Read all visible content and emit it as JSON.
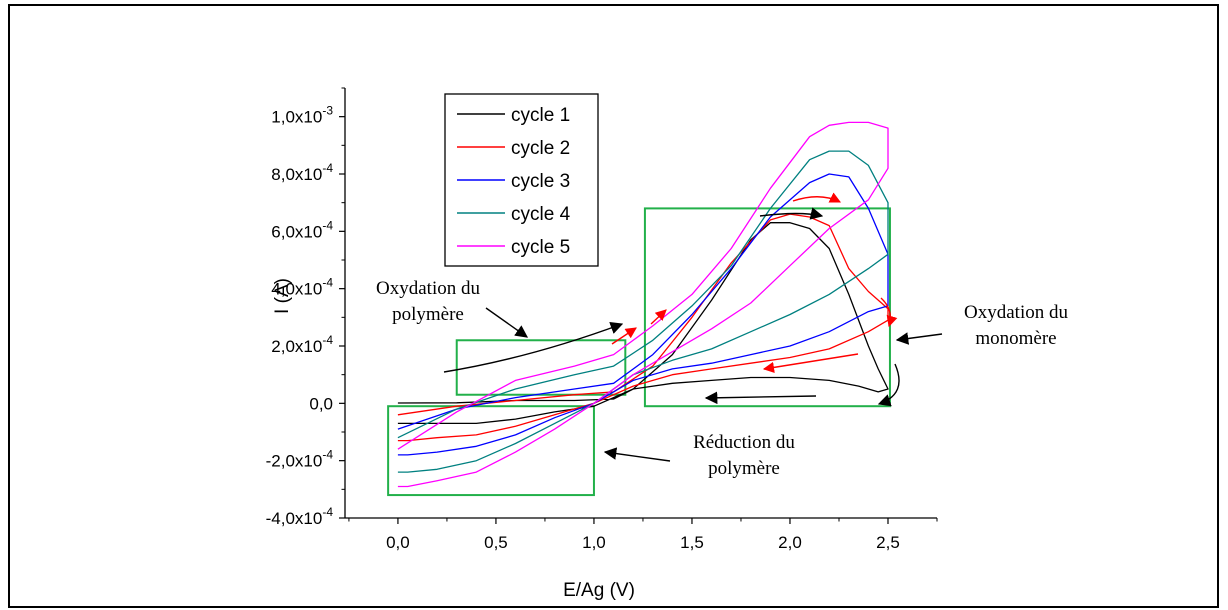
{
  "chart_data": {
    "type": "line",
    "xlabel": "E/Ag (V)",
    "ylabel": "I (A)",
    "xlim": [
      -0.27,
      2.75
    ],
    "ylim": [
      -0.0004,
      0.0011
    ],
    "x_ticks": [
      {
        "value": 0.0,
        "label": "0,0"
      },
      {
        "value": 0.5,
        "label": "0,5"
      },
      {
        "value": 1.0,
        "label": "1,0"
      },
      {
        "value": 1.5,
        "label": "1,5"
      },
      {
        "value": 2.0,
        "label": "2,0"
      },
      {
        "value": 2.5,
        "label": "2,5"
      }
    ],
    "y_ticks": [
      {
        "value": -0.0004,
        "mantissa": "-4,0x10",
        "exp": "-4"
      },
      {
        "value": -0.0002,
        "mantissa": "-2,0x10",
        "exp": "-4"
      },
      {
        "value": 0.0,
        "mantissa": "0,0",
        "exp": ""
      },
      {
        "value": 0.0002,
        "mantissa": "2,0x10",
        "exp": "-4"
      },
      {
        "value": 0.0004,
        "mantissa": "4,0x10",
        "exp": "-4"
      },
      {
        "value": 0.0006,
        "mantissa": "6,0x10",
        "exp": "-4"
      },
      {
        "value": 0.0008,
        "mantissa": "8,0x10",
        "exp": "-4"
      },
      {
        "value": 0.001,
        "mantissa": "1,0x10",
        "exp": "-3"
      }
    ],
    "legend_position": "top-left",
    "series": [
      {
        "name": "cycle 1",
        "color": "#000000",
        "forward": [
          [
            0,
            1e-06
          ],
          [
            0.3,
            2e-06
          ],
          [
            0.6,
            1e-05
          ],
          [
            0.9,
            1e-05
          ],
          [
            1.1,
            1.5e-05
          ],
          [
            1.2,
            5e-05
          ],
          [
            1.4,
            0.00017
          ],
          [
            1.6,
            0.00036
          ],
          [
            1.8,
            0.00057
          ],
          [
            1.9,
            0.00063
          ],
          [
            2.0,
            0.00063
          ],
          [
            2.1,
            0.00061
          ],
          [
            2.2,
            0.00054
          ],
          [
            2.3,
            0.00038
          ],
          [
            2.4,
            0.0002
          ],
          [
            2.45,
            0.00012
          ],
          [
            2.5,
            5e-05
          ]
        ],
        "reverse": [
          [
            2.5,
            5e-05
          ],
          [
            2.45,
            4e-05
          ],
          [
            2.35,
            6e-05
          ],
          [
            2.2,
            8e-05
          ],
          [
            2.0,
            9e-05
          ],
          [
            1.8,
            9e-05
          ],
          [
            1.6,
            8e-05
          ],
          [
            1.4,
            7e-05
          ],
          [
            1.2,
            5e-05
          ],
          [
            1.0,
            -1e-05
          ],
          [
            0.8,
            -3e-05
          ],
          [
            0.6,
            -5.5e-05
          ],
          [
            0.4,
            -7e-05
          ],
          [
            0.2,
            -7e-05
          ],
          [
            0.05,
            -7e-05
          ],
          [
            0,
            -7e-05
          ]
        ]
      },
      {
        "name": "cycle 2",
        "color": "#ff0000",
        "forward": [
          [
            0,
            -4e-05
          ],
          [
            0.3,
            -1e-05
          ],
          [
            0.6,
            1e-05
          ],
          [
            0.9,
            3e-05
          ],
          [
            1.1,
            4e-05
          ],
          [
            1.3,
            0.00013
          ],
          [
            1.5,
            0.0003
          ],
          [
            1.7,
            0.00049
          ],
          [
            1.9,
            0.00064
          ],
          [
            2.0,
            0.00066
          ],
          [
            2.1,
            0.00065
          ],
          [
            2.2,
            0.00062
          ],
          [
            2.3,
            0.00047
          ],
          [
            2.4,
            0.00039
          ],
          [
            2.5,
            0.00033
          ]
        ],
        "reverse": [
          [
            2.5,
            0.00029
          ],
          [
            2.4,
            0.00025
          ],
          [
            2.2,
            0.00019
          ],
          [
            2.0,
            0.00016
          ],
          [
            1.8,
            0.00014
          ],
          [
            1.6,
            0.00012
          ],
          [
            1.4,
            0.0001
          ],
          [
            1.2,
            6e-05
          ],
          [
            1.0,
            0
          ],
          [
            0.8,
            -4e-05
          ],
          [
            0.6,
            -8e-05
          ],
          [
            0.4,
            -0.00011
          ],
          [
            0.2,
            -0.00012
          ],
          [
            0.05,
            -0.00013
          ],
          [
            0,
            -0.00013
          ]
        ]
      },
      {
        "name": "cycle 3",
        "color": "#0000ff",
        "forward": [
          [
            0,
            -9e-05
          ],
          [
            0.3,
            -2e-05
          ],
          [
            0.6,
            2e-05
          ],
          [
            0.9,
            5e-05
          ],
          [
            1.1,
            7e-05
          ],
          [
            1.3,
            0.00017
          ],
          [
            1.5,
            0.00031
          ],
          [
            1.7,
            0.00047
          ],
          [
            1.9,
            0.00065
          ],
          [
            2.1,
            0.00077
          ],
          [
            2.2,
            0.0008
          ],
          [
            2.3,
            0.00079
          ],
          [
            2.4,
            0.00068
          ],
          [
            2.5,
            0.00052
          ]
        ],
        "reverse": [
          [
            2.5,
            0.00034
          ],
          [
            2.4,
            0.00032
          ],
          [
            2.2,
            0.00025
          ],
          [
            2.0,
            0.0002
          ],
          [
            1.8,
            0.00017
          ],
          [
            1.6,
            0.00014
          ],
          [
            1.4,
            0.00012
          ],
          [
            1.2,
            8e-05
          ],
          [
            1.0,
            0
          ],
          [
            0.8,
            -5e-05
          ],
          [
            0.6,
            -0.00011
          ],
          [
            0.4,
            -0.00015
          ],
          [
            0.2,
            -0.00017
          ],
          [
            0.05,
            -0.00018
          ],
          [
            0,
            -0.00018
          ]
        ]
      },
      {
        "name": "cycle 4",
        "color": "#008080",
        "forward": [
          [
            0,
            -0.00012
          ],
          [
            0.3,
            -2e-05
          ],
          [
            0.6,
            5e-05
          ],
          [
            0.9,
            0.0001
          ],
          [
            1.1,
            0.00013
          ],
          [
            1.3,
            0.00022
          ],
          [
            1.5,
            0.00034
          ],
          [
            1.7,
            0.00048
          ],
          [
            1.9,
            0.00068
          ],
          [
            2.1,
            0.00085
          ],
          [
            2.2,
            0.00088
          ],
          [
            2.3,
            0.00088
          ],
          [
            2.4,
            0.00083
          ],
          [
            2.5,
            0.0007
          ]
        ],
        "reverse": [
          [
            2.5,
            0.00052
          ],
          [
            2.4,
            0.00047
          ],
          [
            2.2,
            0.00038
          ],
          [
            2.0,
            0.00031
          ],
          [
            1.8,
            0.00025
          ],
          [
            1.6,
            0.00019
          ],
          [
            1.4,
            0.00015
          ],
          [
            1.2,
            0.0001
          ],
          [
            1.0,
            0
          ],
          [
            0.8,
            -7e-05
          ],
          [
            0.6,
            -0.00014
          ],
          [
            0.4,
            -0.0002
          ],
          [
            0.2,
            -0.00023
          ],
          [
            0.05,
            -0.00024
          ],
          [
            0,
            -0.00024
          ]
        ]
      },
      {
        "name": "cycle 5",
        "color": "#ff00ff",
        "forward": [
          [
            0,
            -0.00016
          ],
          [
            0.3,
            -3e-05
          ],
          [
            0.6,
            8e-05
          ],
          [
            0.9,
            0.00013
          ],
          [
            1.1,
            0.00017
          ],
          [
            1.3,
            0.00027
          ],
          [
            1.5,
            0.00038
          ],
          [
            1.7,
            0.00054
          ],
          [
            1.9,
            0.00075
          ],
          [
            2.1,
            0.00093
          ],
          [
            2.2,
            0.00097
          ],
          [
            2.3,
            0.00098
          ],
          [
            2.4,
            0.00098
          ],
          [
            2.5,
            0.00096
          ]
        ],
        "reverse": [
          [
            2.5,
            0.00082
          ],
          [
            2.4,
            0.00071
          ],
          [
            2.2,
            0.00061
          ],
          [
            2.0,
            0.00048
          ],
          [
            1.8,
            0.00035
          ],
          [
            1.6,
            0.00026
          ],
          [
            1.4,
            0.00018
          ],
          [
            1.2,
            0.0001
          ],
          [
            1.0,
            0
          ],
          [
            0.8,
            -9e-05
          ],
          [
            0.6,
            -0.00017
          ],
          [
            0.4,
            -0.00024
          ],
          [
            0.2,
            -0.00027
          ],
          [
            0.05,
            -0.00029
          ],
          [
            0,
            -0.00029
          ]
        ]
      }
    ],
    "boxes": [
      {
        "name": "box-oxydation-polymere",
        "x0": 0.3,
        "x1": 1.16,
        "y0": 3e-05,
        "y1": 0.00022,
        "color": "#22b04a"
      },
      {
        "name": "box-reduction-polymere",
        "x0": -0.05,
        "x1": 1.0,
        "y0": -0.00032,
        "y1": -1e-05,
        "color": "#22b04a"
      },
      {
        "name": "box-oxydation-monomere",
        "x0": 1.26,
        "x1": 2.51,
        "y0": -1e-05,
        "y1": 0.00068,
        "color": "#22b04a"
      }
    ],
    "annotations": [
      {
        "name": "annotation-oxydation-polymere",
        "lines": [
          "Oxydation du",
          "polymère"
        ]
      },
      {
        "name": "annotation-reduction-polymere",
        "lines": [
          "Réduction du",
          "polymère"
        ]
      },
      {
        "name": "annotation-oxydation-monomere",
        "lines": [
          "Oxydation du",
          "monomère"
        ]
      }
    ]
  }
}
